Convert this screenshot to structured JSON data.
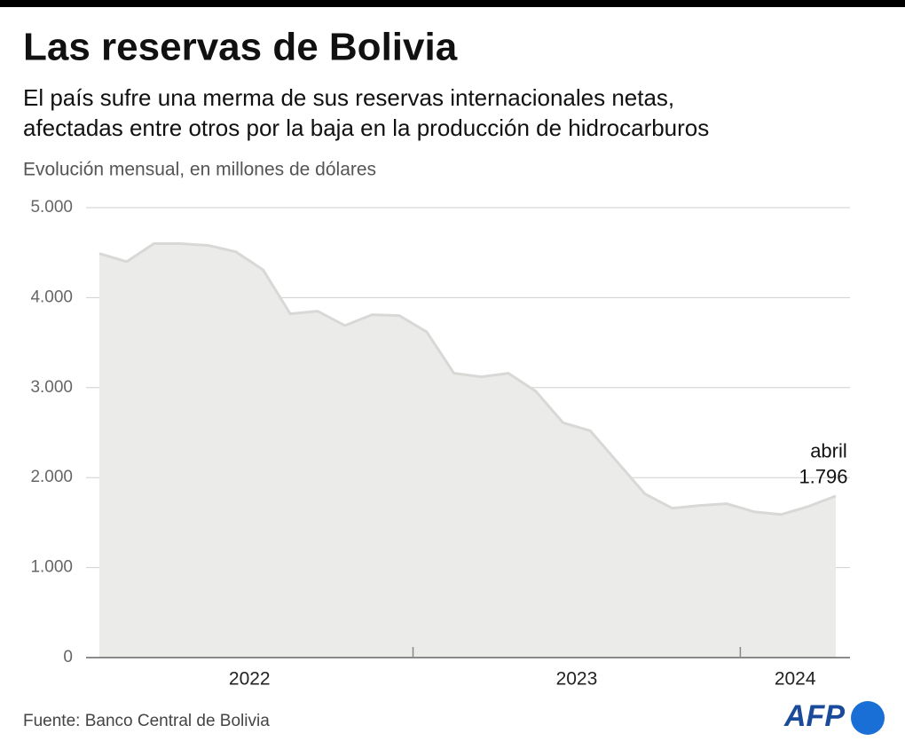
{
  "chart_data": {
    "type": "area",
    "title": "Las reservas de Bolivia",
    "subtitle": [
      "El país sufre una merma de sus reservas internacionales netas,",
      "afectadas entre otros por la baja en la producción de hidrocarburos"
    ],
    "y_label": "Evolución mensual, en millones de dólares",
    "x": [
      "2022",
      "2022",
      "2022",
      "2022",
      "2022",
      "2022",
      "2022",
      "2022",
      "2022",
      "2022",
      "2022",
      "2022",
      "2023",
      "2023",
      "2023",
      "2023",
      "2023",
      "2023",
      "2023",
      "2023",
      "2023",
      "2023",
      "2023",
      "2023",
      "2024",
      "2024",
      "2024",
      "2024"
    ],
    "values": [
      4490,
      4400,
      4600,
      4600,
      4580,
      4510,
      4310,
      3820,
      3850,
      3690,
      3810,
      3800,
      3620,
      3160,
      3120,
      3160,
      2960,
      2610,
      2520,
      2170,
      1820,
      1660,
      1690,
      1710,
      1620,
      1590,
      1680,
      1796
    ],
    "value_labels": [
      null,
      null,
      null,
      null,
      null,
      null,
      null,
      null,
      null,
      null,
      null,
      null,
      null,
      null,
      null,
      null,
      null,
      null,
      null,
      null,
      null,
      null,
      null,
      null,
      null,
      null,
      null,
      "1.796"
    ],
    "annotation": "abril",
    "fill": "#ebebea",
    "line_color": "#d8d8d6",
    "ylim": [
      0,
      5000
    ],
    "yticks": [
      0,
      {
        "value": 1000,
        "label": "1.000"
      },
      {
        "value": 2000,
        "label": "2.000"
      },
      {
        "value": 3000,
        "label": "3.000"
      },
      {
        "value": 4000,
        "label": "4.000"
      },
      {
        "value": 5000,
        "label": "5.000"
      }
    ],
    "grid": true,
    "source": "Fuente: Banco Central de Bolivia",
    "logo": "AFP"
  }
}
